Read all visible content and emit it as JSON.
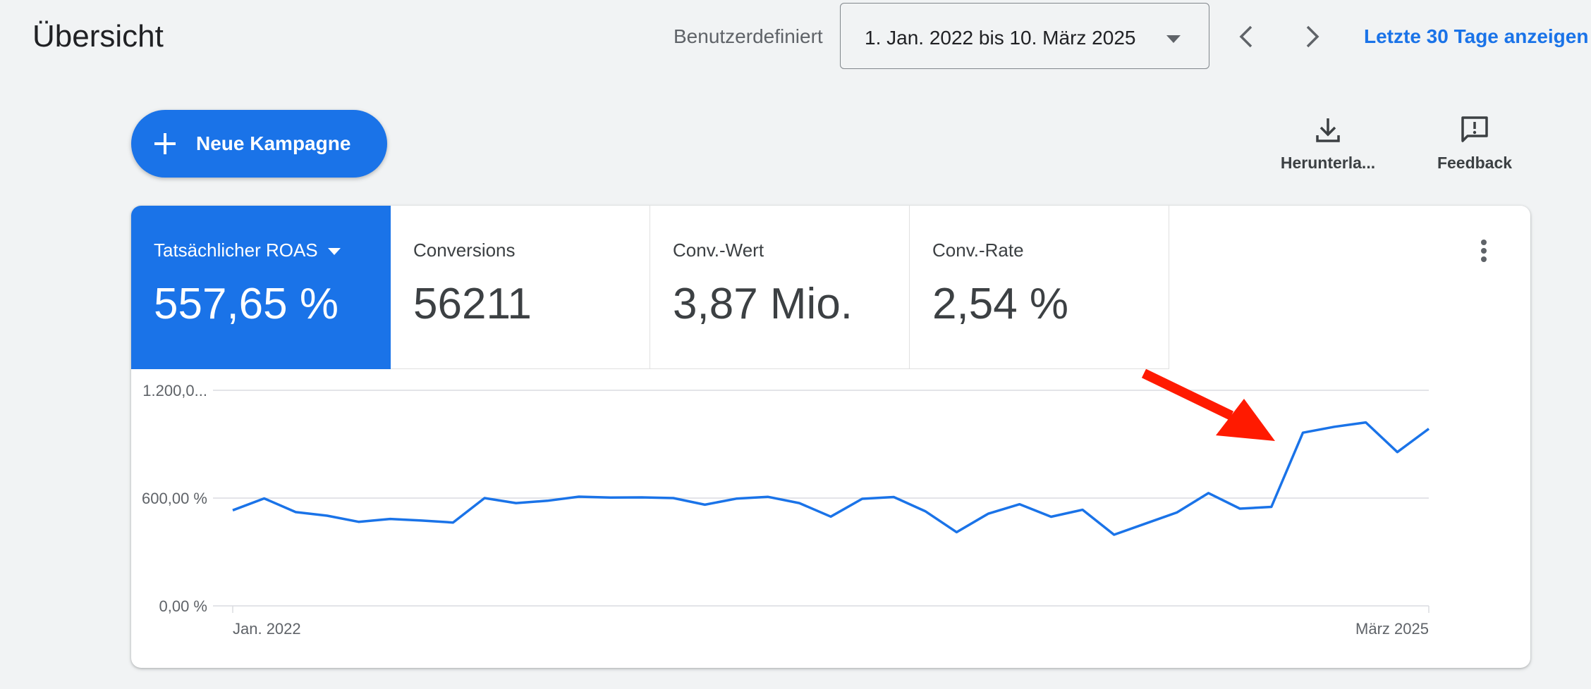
{
  "header": {
    "title": "Übersicht",
    "range_label": "Benutzerdefiniert",
    "date_range": "1. Jan. 2022 bis 10. März 2025",
    "last30_link": "Letzte 30 Tage anzeigen",
    "icons": {
      "prev": "chevron-left-icon",
      "next": "chevron-right-icon",
      "dropdown": "caret-down-icon"
    }
  },
  "actions": {
    "new_campaign_label": "Neue Kampagne",
    "download_label": "Herunterla...",
    "feedback_label": "Feedback"
  },
  "metrics": [
    {
      "label": "Tatsächlicher ROAS",
      "value": "557,65 %",
      "selected": true
    },
    {
      "label": "Conversions",
      "value": "56211",
      "selected": false
    },
    {
      "label": "Conv.-Wert",
      "value": "3,87 Mio.",
      "selected": false
    },
    {
      "label": "Conv.-Rate",
      "value": "2,54 %",
      "selected": false
    }
  ],
  "colors": {
    "accent": "#1a73e8",
    "line": "#1a73e8",
    "annotation_arrow": "#ff1a00",
    "background": "#f1f3f4"
  },
  "chart_data": {
    "type": "line",
    "y_tick_labels": [
      "1.200,0...",
      "600,00 %",
      "0,00 %"
    ],
    "y_ticks": [
      1200,
      600,
      0
    ],
    "ylim": [
      0,
      1200
    ],
    "x_labels": [
      "Jan. 2022",
      "März 2025"
    ],
    "grid": true,
    "series": [
      {
        "values": [
          532,
          598,
          522,
          502,
          468,
          484,
          475,
          464,
          600,
          572,
          585,
          608,
          603,
          604,
          600,
          563,
          597,
          607,
          572,
          497,
          596,
          606,
          527,
          410,
          513,
          566,
          496,
          535,
          396,
          458,
          520,
          628,
          541,
          551,
          964,
          997,
          1021,
          856,
          986
        ]
      }
    ],
    "annotation": {
      "type": "arrow",
      "color": "#ff1a00",
      "points_to": "rise near end of series"
    }
  }
}
